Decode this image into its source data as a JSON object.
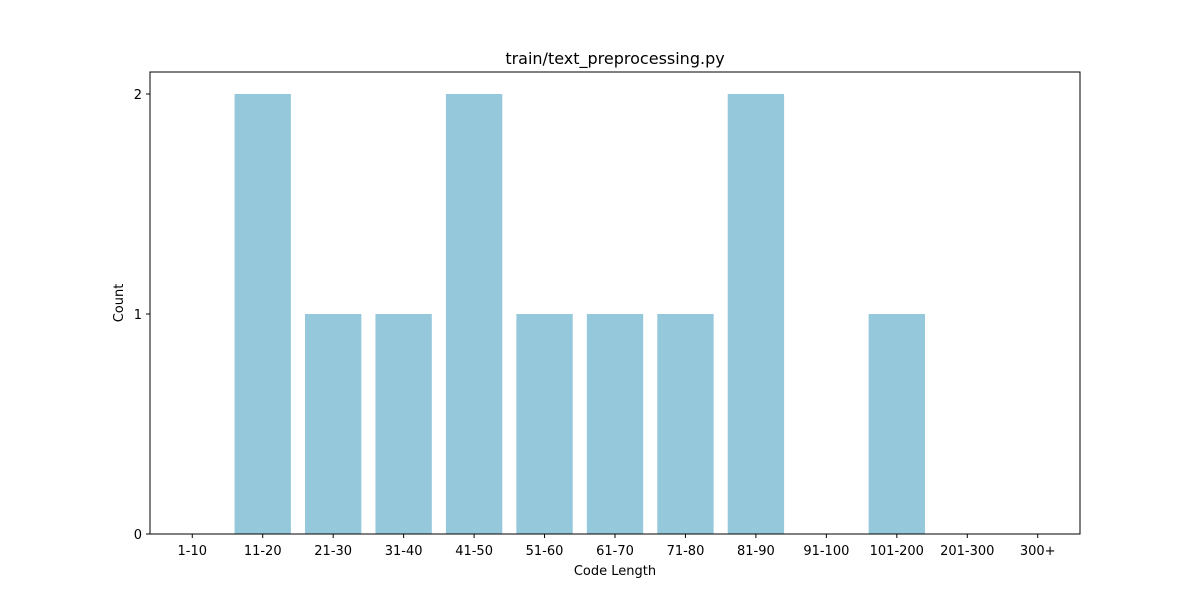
{
  "chart_data": {
    "type": "bar",
    "title": "train/text_preprocessing.py",
    "xlabel": "Code Length",
    "ylabel": "Count",
    "categories": [
      "1-10",
      "11-20",
      "21-30",
      "31-40",
      "41-50",
      "51-60",
      "61-70",
      "71-80",
      "81-90",
      "91-100",
      "101-200",
      "201-300",
      "300+"
    ],
    "values": [
      0,
      2,
      1,
      1,
      2,
      1,
      1,
      1,
      2,
      0,
      1,
      0,
      0
    ],
    "ylim": [
      0,
      2.1
    ],
    "yticks": [
      0,
      1,
      2
    ],
    "bar_color": "#96c8dc",
    "grid": false,
    "legend": "none"
  }
}
